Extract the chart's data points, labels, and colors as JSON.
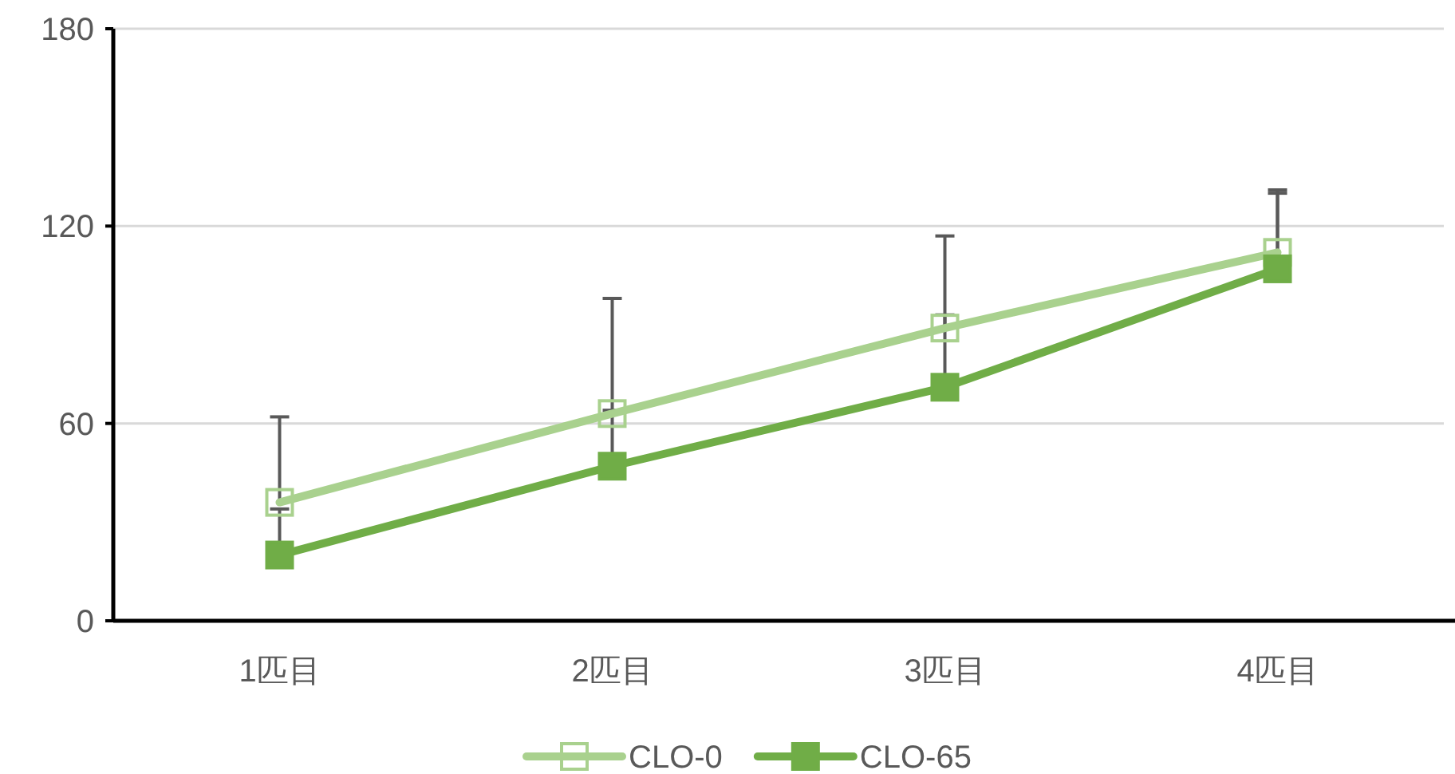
{
  "chart_data": {
    "type": "line",
    "categories": [
      "1匹目",
      "2匹目",
      "3匹目",
      "4匹目"
    ],
    "series": [
      {
        "name": "CLO-0",
        "color": "#a9d18e",
        "values": [
          36,
          63,
          89,
          112
        ],
        "errors": [
          [
            36,
            62
          ],
          [
            63,
            98
          ],
          [
            89,
            117
          ],
          [
            112,
            131
          ]
        ]
      },
      {
        "name": "CLO-65",
        "color": "#70ad47",
        "values": [
          20,
          47,
          71,
          107
        ],
        "errors": [
          [
            20,
            34
          ],
          [
            47,
            64
          ],
          [
            71,
            93
          ],
          [
            107,
            130
          ]
        ]
      }
    ],
    "ylim": [
      0,
      180
    ],
    "yticks": [
      0,
      60,
      120,
      180
    ],
    "grid": "y",
    "legend": "bottom",
    "marker": "square",
    "line_style": "solid"
  }
}
